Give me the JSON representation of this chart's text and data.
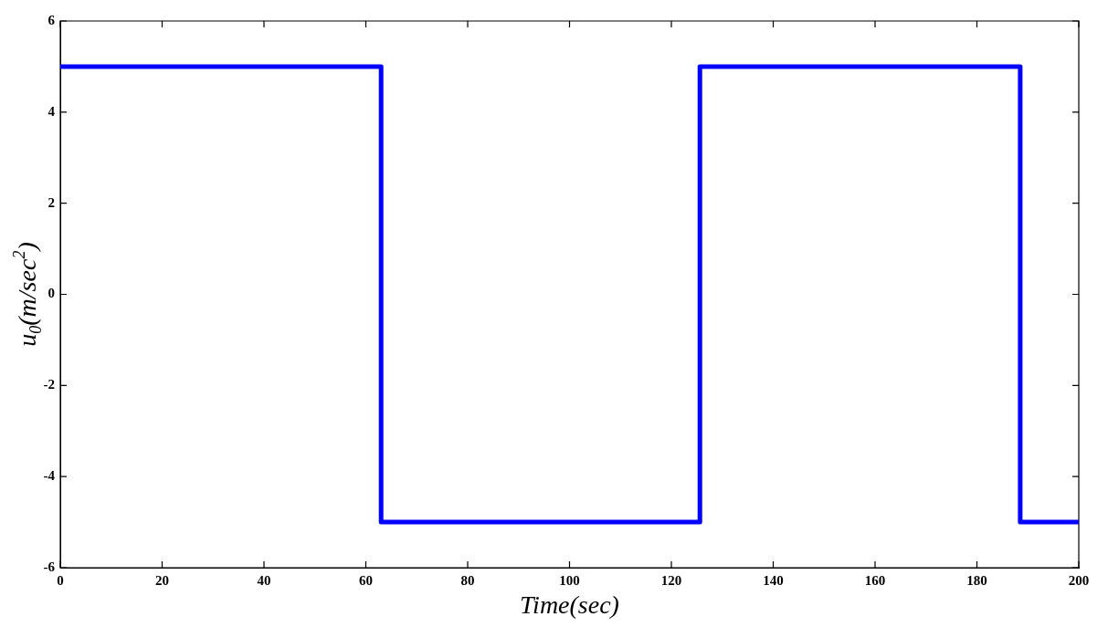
{
  "chart_data": {
    "type": "step",
    "xlabel": "Time(sec)",
    "ylabel": "u$_{0}$(m/sec$^{2}$)",
    "x": [
      0,
      63,
      125.6,
      188.5,
      200
    ],
    "series": [
      {
        "color": "#0000ff",
        "values": [
          5,
          -5,
          5,
          -5,
          -5
        ]
      }
    ],
    "xlim": [
      0,
      200
    ],
    "xticks": [
      0,
      20,
      40,
      60,
      80,
      100,
      120,
      140,
      160,
      180,
      200
    ],
    "ylim": [
      -6,
      6
    ],
    "yticks": [
      -6,
      -4,
      -2,
      0,
      2,
      4,
      6
    ]
  }
}
